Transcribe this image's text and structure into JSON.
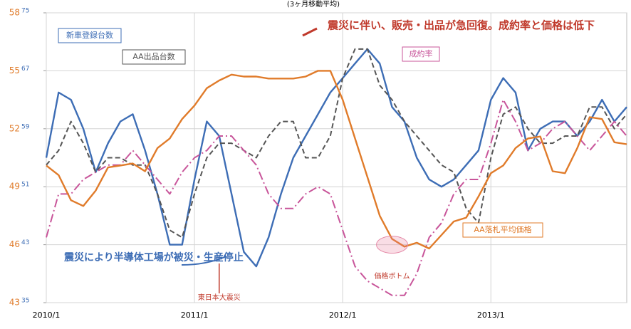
{
  "chart_data": {
    "type": "line",
    "title": "(3ヶ月移動平均)",
    "categories": [
      "2010/1",
      null,
      null,
      null,
      null,
      null,
      null,
      null,
      null,
      null,
      null,
      null,
      "2011/1",
      null,
      null,
      null,
      null,
      null,
      null,
      null,
      null,
      null,
      null,
      null,
      "2012/1",
      null,
      null,
      null,
      null,
      null,
      null,
      null,
      null,
      null,
      null,
      null,
      "2013/1",
      null,
      null,
      null,
      null,
      null,
      null,
      null,
      null,
      null,
      null,
      null
    ],
    "ylim": [
      43,
      58
    ],
    "yticks": [
      43,
      46,
      49,
      52,
      55,
      58
    ],
    "y2lim": [
      35,
      75
    ],
    "y2ticks": [
      35,
      43,
      51,
      59,
      67,
      75
    ],
    "grid": true,
    "series": [
      {
        "name": "新車登録台数",
        "color": "#3d6db5",
        "dash": "solid",
        "axis": "y2",
        "values": [
          55,
          64,
          63,
          59,
          53,
          57,
          60,
          61,
          56,
          50,
          43,
          43,
          52,
          60,
          58,
          50,
          42,
          40,
          44,
          50,
          55,
          58,
          61,
          64,
          66,
          68,
          70,
          68,
          62,
          60,
          55,
          52,
          51,
          52,
          54,
          56,
          63,
          66,
          64,
          56,
          59,
          60,
          60,
          58,
          60,
          63,
          60,
          62
        ]
      },
      {
        "name": "AA出品台数",
        "color": "#555555",
        "dash": "dashed",
        "axis": "y2",
        "values": [
          54,
          56,
          60,
          57,
          53,
          55,
          55,
          54,
          54,
          50,
          45,
          44,
          50,
          55,
          57,
          57,
          56,
          55,
          58,
          60,
          60,
          55,
          55,
          58,
          66,
          70,
          70,
          65,
          63,
          60,
          58,
          56,
          54,
          53,
          48,
          46,
          55,
          61,
          62,
          59,
          57,
          57,
          58,
          58,
          62,
          62,
          59,
          61
        ]
      },
      {
        "name": "成約率",
        "color": "#c8559a",
        "dash": "dashdot",
        "axis": "y2",
        "values": [
          44,
          50,
          50,
          52,
          53,
          54,
          54,
          56,
          54,
          52,
          50,
          53,
          55,
          56,
          58,
          58,
          56,
          54,
          50,
          48,
          48,
          50,
          51,
          50,
          45,
          40,
          38,
          37,
          36,
          36,
          39,
          44,
          46,
          50,
          52,
          52,
          57,
          63,
          60,
          56,
          57,
          59,
          60,
          58,
          56,
          58,
          60,
          58
        ]
      },
      {
        "name": "AA落札平均価格",
        "color": "#e07b2a",
        "dash": "solid",
        "values": [
          50.1,
          49.6,
          48.3,
          48.0,
          48.8,
          50.0,
          50.1,
          50.2,
          49.8,
          51.0,
          51.5,
          52.5,
          53.2,
          54.1,
          54.5,
          54.8,
          54.7,
          54.7,
          54.6,
          54.6,
          54.6,
          54.7,
          55.0,
          55.0,
          53.5,
          51.5,
          49.5,
          47.5,
          46.3,
          45.9,
          46.1,
          45.8,
          46.5,
          47.2,
          47.4,
          48.5,
          49.7,
          50.1,
          51.0,
          51.5,
          51.6,
          49.8,
          49.7,
          51.0,
          52.6,
          52.5,
          51.3,
          51.2
        ]
      }
    ],
    "annotations": [
      "震災に伴い、販売・出品が急回復。成約率と価格は低下",
      "震災により半導体工場が被災・生産停止",
      "東日本大震災",
      "価格ボトム"
    ]
  }
}
